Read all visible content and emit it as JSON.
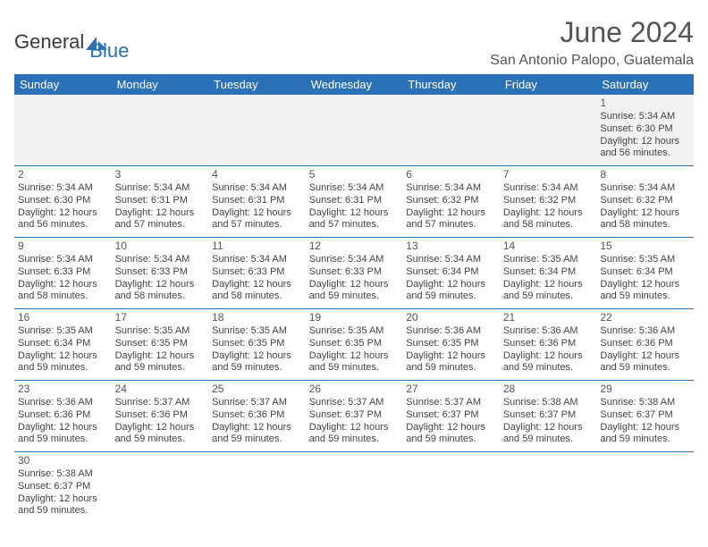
{
  "logo": {
    "text_a": "General",
    "text_b": "Blue"
  },
  "title": "June 2024",
  "location": "San Antonio Palopo, Guatemala",
  "colors": {
    "header_bg": "#2a71b8",
    "header_text": "#ffffff",
    "rule": "#2a71b8",
    "body_text": "#444444",
    "title_text": "#555555",
    "firstrow_bg": "#f2f2f2"
  },
  "day_headers": [
    "Sunday",
    "Monday",
    "Tuesday",
    "Wednesday",
    "Thursday",
    "Friday",
    "Saturday"
  ],
  "weeks": [
    [
      null,
      null,
      null,
      null,
      null,
      null,
      {
        "n": "1",
        "sr": "Sunrise: 5:34 AM",
        "ss": "Sunset: 6:30 PM",
        "d1": "Daylight: 12 hours",
        "d2": "and 56 minutes."
      }
    ],
    [
      {
        "n": "2",
        "sr": "Sunrise: 5:34 AM",
        "ss": "Sunset: 6:30 PM",
        "d1": "Daylight: 12 hours",
        "d2": "and 56 minutes."
      },
      {
        "n": "3",
        "sr": "Sunrise: 5:34 AM",
        "ss": "Sunset: 6:31 PM",
        "d1": "Daylight: 12 hours",
        "d2": "and 57 minutes."
      },
      {
        "n": "4",
        "sr": "Sunrise: 5:34 AM",
        "ss": "Sunset: 6:31 PM",
        "d1": "Daylight: 12 hours",
        "d2": "and 57 minutes."
      },
      {
        "n": "5",
        "sr": "Sunrise: 5:34 AM",
        "ss": "Sunset: 6:31 PM",
        "d1": "Daylight: 12 hours",
        "d2": "and 57 minutes."
      },
      {
        "n": "6",
        "sr": "Sunrise: 5:34 AM",
        "ss": "Sunset: 6:32 PM",
        "d1": "Daylight: 12 hours",
        "d2": "and 57 minutes."
      },
      {
        "n": "7",
        "sr": "Sunrise: 5:34 AM",
        "ss": "Sunset: 6:32 PM",
        "d1": "Daylight: 12 hours",
        "d2": "and 58 minutes."
      },
      {
        "n": "8",
        "sr": "Sunrise: 5:34 AM",
        "ss": "Sunset: 6:32 PM",
        "d1": "Daylight: 12 hours",
        "d2": "and 58 minutes."
      }
    ],
    [
      {
        "n": "9",
        "sr": "Sunrise: 5:34 AM",
        "ss": "Sunset: 6:33 PM",
        "d1": "Daylight: 12 hours",
        "d2": "and 58 minutes."
      },
      {
        "n": "10",
        "sr": "Sunrise: 5:34 AM",
        "ss": "Sunset: 6:33 PM",
        "d1": "Daylight: 12 hours",
        "d2": "and 58 minutes."
      },
      {
        "n": "11",
        "sr": "Sunrise: 5:34 AM",
        "ss": "Sunset: 6:33 PM",
        "d1": "Daylight: 12 hours",
        "d2": "and 58 minutes."
      },
      {
        "n": "12",
        "sr": "Sunrise: 5:34 AM",
        "ss": "Sunset: 6:33 PM",
        "d1": "Daylight: 12 hours",
        "d2": "and 59 minutes."
      },
      {
        "n": "13",
        "sr": "Sunrise: 5:34 AM",
        "ss": "Sunset: 6:34 PM",
        "d1": "Daylight: 12 hours",
        "d2": "and 59 minutes."
      },
      {
        "n": "14",
        "sr": "Sunrise: 5:35 AM",
        "ss": "Sunset: 6:34 PM",
        "d1": "Daylight: 12 hours",
        "d2": "and 59 minutes."
      },
      {
        "n": "15",
        "sr": "Sunrise: 5:35 AM",
        "ss": "Sunset: 6:34 PM",
        "d1": "Daylight: 12 hours",
        "d2": "and 59 minutes."
      }
    ],
    [
      {
        "n": "16",
        "sr": "Sunrise: 5:35 AM",
        "ss": "Sunset: 6:34 PM",
        "d1": "Daylight: 12 hours",
        "d2": "and 59 minutes."
      },
      {
        "n": "17",
        "sr": "Sunrise: 5:35 AM",
        "ss": "Sunset: 6:35 PM",
        "d1": "Daylight: 12 hours",
        "d2": "and 59 minutes."
      },
      {
        "n": "18",
        "sr": "Sunrise: 5:35 AM",
        "ss": "Sunset: 6:35 PM",
        "d1": "Daylight: 12 hours",
        "d2": "and 59 minutes."
      },
      {
        "n": "19",
        "sr": "Sunrise: 5:35 AM",
        "ss": "Sunset: 6:35 PM",
        "d1": "Daylight: 12 hours",
        "d2": "and 59 minutes."
      },
      {
        "n": "20",
        "sr": "Sunrise: 5:36 AM",
        "ss": "Sunset: 6:35 PM",
        "d1": "Daylight: 12 hours",
        "d2": "and 59 minutes."
      },
      {
        "n": "21",
        "sr": "Sunrise: 5:36 AM",
        "ss": "Sunset: 6:36 PM",
        "d1": "Daylight: 12 hours",
        "d2": "and 59 minutes."
      },
      {
        "n": "22",
        "sr": "Sunrise: 5:36 AM",
        "ss": "Sunset: 6:36 PM",
        "d1": "Daylight: 12 hours",
        "d2": "and 59 minutes."
      }
    ],
    [
      {
        "n": "23",
        "sr": "Sunrise: 5:36 AM",
        "ss": "Sunset: 6:36 PM",
        "d1": "Daylight: 12 hours",
        "d2": "and 59 minutes."
      },
      {
        "n": "24",
        "sr": "Sunrise: 5:37 AM",
        "ss": "Sunset: 6:36 PM",
        "d1": "Daylight: 12 hours",
        "d2": "and 59 minutes."
      },
      {
        "n": "25",
        "sr": "Sunrise: 5:37 AM",
        "ss": "Sunset: 6:36 PM",
        "d1": "Daylight: 12 hours",
        "d2": "and 59 minutes."
      },
      {
        "n": "26",
        "sr": "Sunrise: 5:37 AM",
        "ss": "Sunset: 6:37 PM",
        "d1": "Daylight: 12 hours",
        "d2": "and 59 minutes."
      },
      {
        "n": "27",
        "sr": "Sunrise: 5:37 AM",
        "ss": "Sunset: 6:37 PM",
        "d1": "Daylight: 12 hours",
        "d2": "and 59 minutes."
      },
      {
        "n": "28",
        "sr": "Sunrise: 5:38 AM",
        "ss": "Sunset: 6:37 PM",
        "d1": "Daylight: 12 hours",
        "d2": "and 59 minutes."
      },
      {
        "n": "29",
        "sr": "Sunrise: 5:38 AM",
        "ss": "Sunset: 6:37 PM",
        "d1": "Daylight: 12 hours",
        "d2": "and 59 minutes."
      }
    ],
    [
      {
        "n": "30",
        "sr": "Sunrise: 5:38 AM",
        "ss": "Sunset: 6:37 PM",
        "d1": "Daylight: 12 hours",
        "d2": "and 59 minutes."
      },
      null,
      null,
      null,
      null,
      null,
      null
    ]
  ]
}
